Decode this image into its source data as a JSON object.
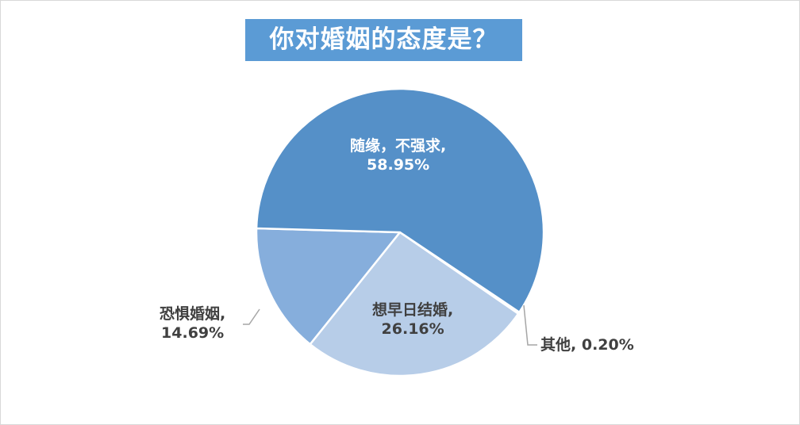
{
  "chart_data": {
    "type": "pie",
    "title": "你对婚姻的态度是？",
    "categories": [
      "随缘，不强求",
      "其他",
      "想早日结婚",
      "恐惧婚姻"
    ],
    "values": [
      58.95,
      0.2,
      26.16,
      14.69
    ],
    "unit": "%",
    "labels": [
      {
        "name": "随缘，不强求,",
        "value": "58.95%"
      },
      {
        "name": "其他,",
        "value": "0.20%"
      },
      {
        "name": "想早日结婚,",
        "value": "26.16%"
      },
      {
        "name": "恐惧婚姻,",
        "value": "14.69%"
      }
    ],
    "colors": [
      "#5590c8",
      "#4a7fb5",
      "#b7cde8",
      "#86aedc"
    ],
    "title_background": "#5b9bd5",
    "legend": "none"
  }
}
